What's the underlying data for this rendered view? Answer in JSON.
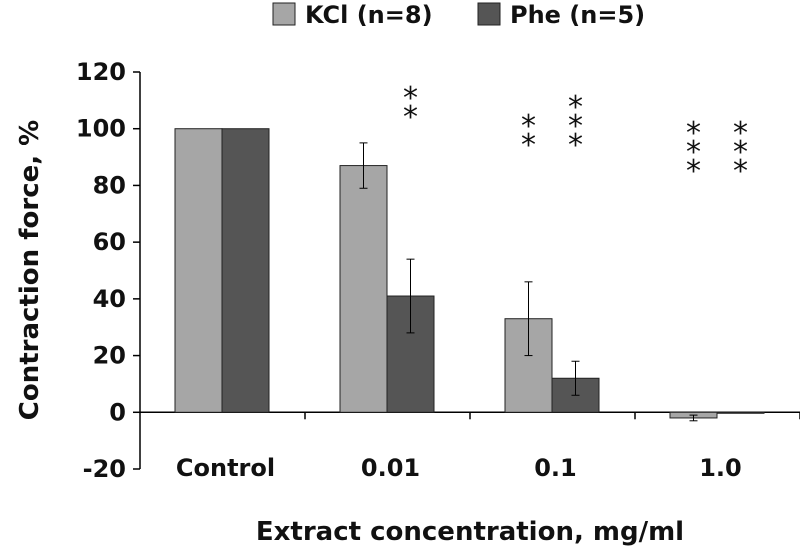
{
  "chart_data": {
    "type": "bar",
    "title": "",
    "xlabel": "Extract concentration, mg/ml",
    "ylabel": "Contraction force, %",
    "ylim": [
      -20,
      120
    ],
    "yticks": [
      -20,
      0,
      20,
      40,
      60,
      80,
      100,
      120
    ],
    "categories": [
      "Control",
      "0.01",
      "0.1",
      "1.0"
    ],
    "series": [
      {
        "name": "KCl (n=8)",
        "color": "#a6a6a6",
        "values": [
          100,
          87,
          33,
          -2
        ],
        "errors": [
          0,
          8,
          13,
          1
        ],
        "significance": [
          "",
          "",
          "**",
          "***"
        ]
      },
      {
        "name": "Phe (n=5)",
        "color": "#555555",
        "values": [
          100,
          41,
          12,
          0
        ],
        "errors": [
          0,
          13,
          6,
          0
        ],
        "significance": [
          "",
          "**",
          "***",
          "***"
        ]
      }
    ],
    "legend_position": "top",
    "grid": false
  }
}
